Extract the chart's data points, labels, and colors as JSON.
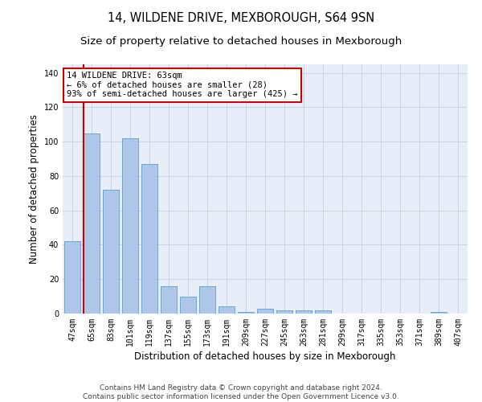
{
  "title": "14, WILDENE DRIVE, MEXBOROUGH, S64 9SN",
  "subtitle": "Size of property relative to detached houses in Mexborough",
  "xlabel": "Distribution of detached houses by size in Mexborough",
  "ylabel": "Number of detached properties",
  "categories": [
    "47sqm",
    "65sqm",
    "83sqm",
    "101sqm",
    "119sqm",
    "137sqm",
    "155sqm",
    "173sqm",
    "191sqm",
    "209sqm",
    "227sqm",
    "245sqm",
    "263sqm",
    "281sqm",
    "299sqm",
    "317sqm",
    "335sqm",
    "353sqm",
    "371sqm",
    "389sqm",
    "407sqm"
  ],
  "values": [
    42,
    105,
    72,
    102,
    87,
    16,
    10,
    16,
    4,
    1,
    3,
    2,
    2,
    2,
    0,
    0,
    0,
    0,
    0,
    1,
    0
  ],
  "bar_color": "#aec6e8",
  "bar_edge_color": "#5a9fd4",
  "annotation_title": "14 WILDENE DRIVE: 63sqm",
  "annotation_line1": "← 6% of detached houses are smaller (28)",
  "annotation_line2": "93% of semi-detached houses are larger (425) →",
  "vline_color": "#cc0000",
  "vline_position": 1,
  "ylim": [
    0,
    145
  ],
  "yticks": [
    0,
    20,
    40,
    60,
    80,
    100,
    120,
    140
  ],
  "background_color": "#ffffff",
  "plot_bg_color": "#e8eef8",
  "grid_color": "#c8d4e8",
  "footer_line1": "Contains HM Land Registry data © Crown copyright and database right 2024.",
  "footer_line2": "Contains public sector information licensed under the Open Government Licence v3.0.",
  "title_fontsize": 10.5,
  "subtitle_fontsize": 9.5,
  "axis_label_fontsize": 8.5,
  "tick_fontsize": 7,
  "footer_fontsize": 6.5,
  "annotation_fontsize": 7.5
}
